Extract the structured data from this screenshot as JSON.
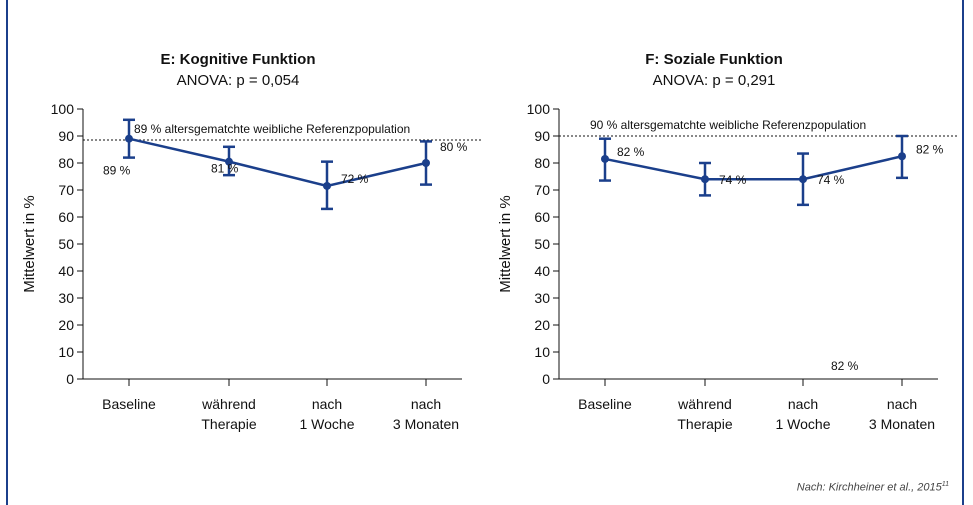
{
  "source": {
    "text": "Nach: Kirchheiner et al., 2015",
    "sup": "11"
  },
  "colors": {
    "series": "#1b3f8b",
    "frame": "#1b3f8b"
  },
  "chart_data": [
    {
      "type": "line",
      "title": "E: Kognitive Funktion",
      "subtitle": "ANOVA: p = 0,054",
      "ylabel": "Mittelwert in %",
      "ylim": [
        0,
        100
      ],
      "yticks": [
        0,
        10,
        20,
        30,
        40,
        50,
        60,
        70,
        80,
        90,
        100
      ],
      "categories": [
        [
          "Baseline"
        ],
        [
          "während",
          "Therapie"
        ],
        [
          "nach",
          "1 Woche"
        ],
        [
          "nach",
          "3 Monaten"
        ]
      ],
      "values": [
        89,
        80.5,
        71.5,
        80
      ],
      "err_low": [
        82,
        75.5,
        63,
        72
      ],
      "err_high": [
        96,
        86,
        80.5,
        88
      ],
      "labels": [
        "89 %",
        "81 %",
        "72 %",
        "80 %"
      ],
      "reference": {
        "value": 88.5,
        "label": "89 % altersgematchte weibliche Referenzpopulation"
      },
      "extra_labels": []
    },
    {
      "type": "line",
      "title": "F: Soziale Funktion",
      "subtitle": "ANOVA: p = 0,291",
      "ylabel": "Mittelwert in %",
      "ylim": [
        0,
        100
      ],
      "yticks": [
        0,
        10,
        20,
        30,
        40,
        50,
        60,
        70,
        80,
        90,
        100
      ],
      "categories": [
        [
          "Baseline"
        ],
        [
          "während",
          "Therapie"
        ],
        [
          "nach",
          "1 Woche"
        ],
        [
          "nach",
          "3 Monaten"
        ]
      ],
      "values": [
        81.5,
        74,
        74,
        82.5
      ],
      "err_low": [
        73.5,
        68,
        64.5,
        74.5
      ],
      "err_high": [
        89,
        80,
        83.5,
        90
      ],
      "labels": [
        "82 %",
        "74 %",
        "74 %",
        "82 %"
      ],
      "reference": {
        "value": 90,
        "label": "90 % altersgematchte weibliche Referenzpopulation"
      },
      "extra_labels": [
        "82 %"
      ]
    }
  ]
}
